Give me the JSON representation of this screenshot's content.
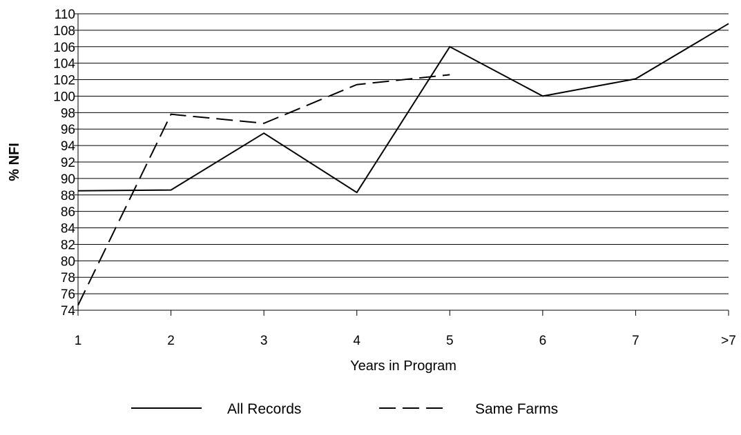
{
  "chart_data": {
    "type": "line",
    "title": "",
    "xlabel": "Years in Program",
    "ylabel": "% NFI",
    "categories": [
      "1",
      "2",
      "3",
      "4",
      "5",
      "6",
      "7",
      ">7"
    ],
    "ylim": [
      74,
      110
    ],
    "yticks": [
      74,
      76,
      78,
      80,
      82,
      84,
      86,
      88,
      90,
      92,
      94,
      96,
      98,
      100,
      102,
      104,
      106,
      108,
      110
    ],
    "grid": true,
    "legend_position": "bottom",
    "series": [
      {
        "name": "All Records",
        "style": "solid",
        "color": "#000000",
        "values": [
          88.5,
          88.6,
          95.5,
          88.3,
          106.0,
          100.0,
          102.1,
          108.8
        ]
      },
      {
        "name": "Same Farms",
        "style": "dashed",
        "color": "#000000",
        "values": [
          74.6,
          97.8,
          96.7,
          101.4,
          102.6,
          null,
          null,
          null
        ]
      }
    ]
  }
}
